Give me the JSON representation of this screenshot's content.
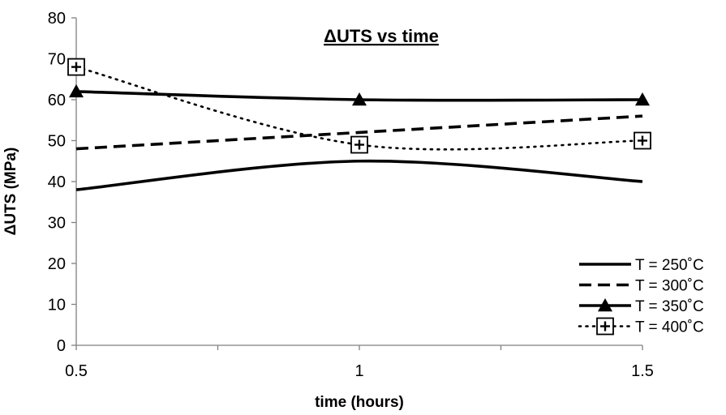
{
  "chart_data": {
    "type": "line",
    "title": "ΔUTS vs time",
    "xlabel": "time (hours)",
    "ylabel": "ΔUTS (MPa)",
    "x": [
      0.5,
      1,
      1.5
    ],
    "xticks": [
      "0.5",
      "1",
      "1.5"
    ],
    "yticks": [
      "0",
      "10",
      "20",
      "30",
      "40",
      "50",
      "60",
      "70",
      "80"
    ],
    "xlim": [
      0.5,
      1.5
    ],
    "ylim": [
      0,
      80
    ],
    "grid": false,
    "smooth": true,
    "legend_position": "bottom-right",
    "series": [
      {
        "name": "T = 250˚C",
        "values": [
          38,
          45,
          40
        ],
        "line": "solid-thick",
        "marker": "none",
        "color": "#000000"
      },
      {
        "name": "T = 300˚C",
        "values": [
          48,
          52,
          56
        ],
        "line": "dashed",
        "marker": "none",
        "color": "#000000"
      },
      {
        "name": "T = 350˚C",
        "values": [
          62,
          60,
          60
        ],
        "line": "solid",
        "marker": "triangle",
        "color": "#000000"
      },
      {
        "name": "T = 400˚C",
        "values": [
          68,
          49,
          50
        ],
        "line": "dotted",
        "marker": "boxed-plus",
        "color": "#000000"
      }
    ]
  }
}
